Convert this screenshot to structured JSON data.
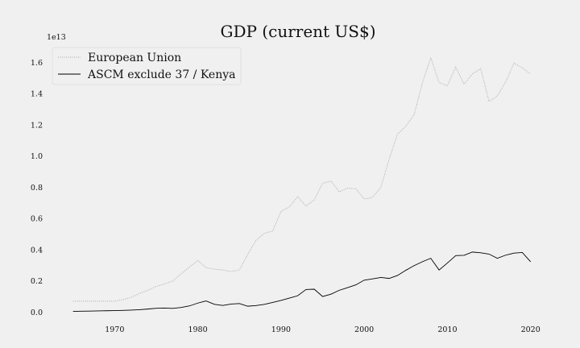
{
  "chart_data": {
    "type": "line",
    "title": "GDP (current US$)",
    "xlabel": "",
    "ylabel": "",
    "y_multiplier_label": "1e13",
    "xlim": [
      1963,
      2024
    ],
    "ylim": [
      -0.08,
      1.7
    ],
    "x_ticks": [
      1970,
      1980,
      1990,
      2000,
      2010,
      2020
    ],
    "y_ticks": [
      0.0,
      0.2,
      0.4,
      0.6,
      0.8,
      1.0,
      1.2,
      1.4,
      1.6
    ],
    "y_tick_labels": [
      "0.0",
      "0.2",
      "0.4",
      "0.6",
      "0.8",
      "1.0",
      "1.2",
      "1.4",
      "1.6"
    ],
    "grid": false,
    "legend_position": "top-left",
    "x": [
      1965,
      1966,
      1967,
      1968,
      1969,
      1970,
      1971,
      1972,
      1973,
      1974,
      1975,
      1976,
      1977,
      1978,
      1979,
      1980,
      1981,
      1982,
      1983,
      1984,
      1985,
      1986,
      1987,
      1988,
      1989,
      1990,
      1991,
      1992,
      1993,
      1994,
      1995,
      1996,
      1997,
      1998,
      1999,
      2000,
      2001,
      2002,
      2003,
      2004,
      2005,
      2006,
      2007,
      2008,
      2009,
      2010,
      2011,
      2012,
      2013,
      2014,
      2015,
      2016,
      2017,
      2018,
      2019,
      2020
    ],
    "series": [
      {
        "name": "European Union",
        "color": "#a9a9a9",
        "line_style": "dotted",
        "values": [
          0.07,
          0.07,
          0.07,
          0.07,
          0.07,
          0.07,
          0.08,
          0.095,
          0.12,
          0.14,
          0.165,
          0.18,
          0.2,
          0.245,
          0.29,
          0.33,
          0.285,
          0.275,
          0.27,
          0.26,
          0.27,
          0.37,
          0.46,
          0.505,
          0.52,
          0.645,
          0.675,
          0.74,
          0.68,
          0.72,
          0.825,
          0.84,
          0.77,
          0.795,
          0.79,
          0.725,
          0.735,
          0.8,
          0.98,
          1.14,
          1.19,
          1.265,
          1.47,
          1.63,
          1.47,
          1.45,
          1.57,
          1.46,
          1.525,
          1.56,
          1.35,
          1.385,
          1.475,
          1.595,
          1.565,
          1.525
        ]
      },
      {
        "name": "ASCM exclude 37 / Kenya",
        "color": "#000000",
        "line_style": "solid",
        "values": [
          0.005,
          0.006,
          0.007,
          0.008,
          0.009,
          0.01,
          0.011,
          0.013,
          0.016,
          0.02,
          0.025,
          0.026,
          0.024,
          0.03,
          0.04,
          0.058,
          0.072,
          0.05,
          0.043,
          0.052,
          0.055,
          0.038,
          0.042,
          0.05,
          0.062,
          0.075,
          0.09,
          0.105,
          0.145,
          0.147,
          0.1,
          0.115,
          0.14,
          0.157,
          0.175,
          0.205,
          0.213,
          0.222,
          0.216,
          0.235,
          0.268,
          0.298,
          0.323,
          0.345,
          0.27,
          0.315,
          0.362,
          0.364,
          0.385,
          0.38,
          0.372,
          0.345,
          0.365,
          0.378,
          0.382,
          0.323
        ]
      }
    ]
  }
}
